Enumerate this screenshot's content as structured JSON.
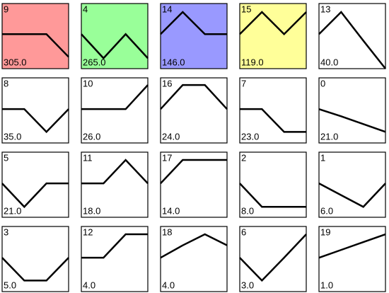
{
  "chart_data": [
    {
      "type": "line",
      "title": "9",
      "annotation": "305.0",
      "color": "#ff9999",
      "values": [
        0.53,
        0.53,
        0.53,
        0.18
      ],
      "ylim": [
        0,
        1
      ]
    },
    {
      "type": "line",
      "title": "4",
      "annotation": "265.0",
      "color": "#99ff99",
      "values": [
        0.53,
        0.16,
        0.53,
        0.16
      ],
      "ylim": [
        0,
        1
      ]
    },
    {
      "type": "line",
      "title": "14",
      "annotation": "146.0",
      "color": "#9999ff",
      "values": [
        0.53,
        0.87,
        0.53,
        0.53
      ],
      "ylim": [
        0,
        1
      ]
    },
    {
      "type": "line",
      "title": "15",
      "annotation": "119.0",
      "color": "#ffff99",
      "values": [
        0.53,
        0.87,
        0.53,
        0.87
      ],
      "ylim": [
        0,
        1
      ]
    },
    {
      "type": "line",
      "title": "13",
      "annotation": "40.0",
      "color": "#ffffff",
      "values": [
        0.53,
        0.87,
        0.43,
        0.0
      ],
      "ylim": [
        0,
        1
      ]
    },
    {
      "type": "line",
      "title": "8",
      "annotation": "35.0",
      "color": "#ffffff",
      "values": [
        0.52,
        0.52,
        0.17,
        0.52
      ],
      "ylim": [
        0,
        1
      ]
    },
    {
      "type": "line",
      "title": "10",
      "annotation": "26.0",
      "color": "#ffffff",
      "values": [
        0.52,
        0.52,
        0.52,
        0.89
      ],
      "ylim": [
        0,
        1
      ]
    },
    {
      "type": "line",
      "title": "16",
      "annotation": "24.0",
      "color": "#ffffff",
      "values": [
        0.52,
        0.89,
        0.89,
        0.52
      ],
      "ylim": [
        0,
        1
      ]
    },
    {
      "type": "line",
      "title": "7",
      "annotation": "23.0",
      "color": "#ffffff",
      "values": [
        0.52,
        0.52,
        0.17,
        0.17
      ],
      "ylim": [
        0,
        1
      ]
    },
    {
      "type": "line",
      "title": "0",
      "annotation": "21.0",
      "color": "#ffffff",
      "values": [
        0.52,
        0.41,
        0.29,
        0.17
      ],
      "ylim": [
        0,
        1
      ]
    },
    {
      "type": "line",
      "title": "5",
      "annotation": "21.0",
      "color": "#ffffff",
      "values": [
        0.52,
        0.16,
        0.52,
        0.52
      ],
      "ylim": [
        0,
        1
      ]
    },
    {
      "type": "line",
      "title": "11",
      "annotation": "18.0",
      "color": "#ffffff",
      "values": [
        0.52,
        0.52,
        0.88,
        0.52
      ],
      "ylim": [
        0,
        1
      ]
    },
    {
      "type": "line",
      "title": "17",
      "annotation": "14.0",
      "color": "#ffffff",
      "values": [
        0.52,
        0.88,
        0.88,
        0.88
      ],
      "ylim": [
        0,
        1
      ]
    },
    {
      "type": "line",
      "title": "2",
      "annotation": "8.0",
      "color": "#ffffff",
      "values": [
        0.52,
        0.16,
        0.16,
        0.16
      ],
      "ylim": [
        0,
        1
      ]
    },
    {
      "type": "line",
      "title": "1",
      "annotation": "6.0",
      "color": "#ffffff",
      "values": [
        0.52,
        0.34,
        0.16,
        0.52
      ],
      "ylim": [
        0,
        1
      ]
    },
    {
      "type": "line",
      "title": "3",
      "annotation": "5.0",
      "color": "#ffffff",
      "values": [
        0.52,
        0.17,
        0.17,
        0.52
      ],
      "ylim": [
        0,
        1
      ]
    },
    {
      "type": "line",
      "title": "12",
      "annotation": "4.0",
      "color": "#ffffff",
      "values": [
        0.52,
        0.52,
        0.88,
        0.88
      ],
      "ylim": [
        0,
        1
      ]
    },
    {
      "type": "line",
      "title": "18",
      "annotation": "4.0",
      "color": "#ffffff",
      "values": [
        0.52,
        0.71,
        0.88,
        0.71
      ],
      "ylim": [
        0,
        1
      ]
    },
    {
      "type": "line",
      "title": "6",
      "annotation": "3.0",
      "color": "#ffffff",
      "values": [
        0.52,
        0.17,
        0.52,
        0.88
      ],
      "ylim": [
        0,
        1
      ]
    },
    {
      "type": "line",
      "title": "19",
      "annotation": "1.0",
      "color": "#ffffff",
      "values": [
        0.52,
        0.64,
        0.76,
        0.88
      ],
      "ylim": [
        0,
        1
      ]
    }
  ]
}
